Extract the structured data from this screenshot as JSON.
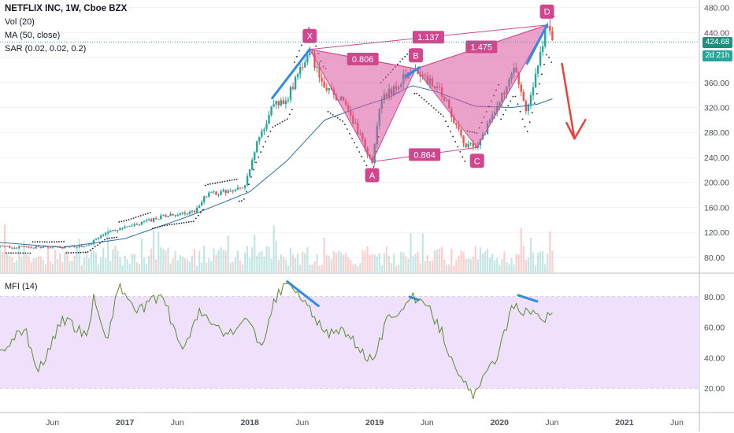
{
  "legend": {
    "title": "NETFLIX INC, 1W, Cboe BZX",
    "vol": "Vol (20)",
    "ma": "MA (50, close)",
    "sar": "SAR (0.02, 0.02, 0.2)",
    "mfi": "MFI (14)"
  },
  "price_tags": {
    "last": "424.68",
    "countdown": "2d 21h"
  },
  "colors": {
    "up": "#26a69a",
    "down": "#ef5350",
    "ma": "#2c6ea8",
    "sar": "#1a1a2e",
    "pattern": "#d1478f",
    "pattern_fill": "#d9559e",
    "blue_line": "#2f8be6",
    "arrow": "#e8413a",
    "mfi_line": "#5b8a2e",
    "mfi_band": "#efe1fb",
    "price_line": "#26a69a"
  },
  "chart_data": [
    {
      "type": "candlestick",
      "title": "NETFLIX INC, 1W, Cboe BZX",
      "x_axis_labels": [
        "Jun",
        "2017",
        "Jun",
        "2018",
        "Jun",
        "2019",
        "Jun",
        "2020",
        "Jun",
        "2021",
        "Jun"
      ],
      "y_ticks": [
        80,
        120,
        160,
        200,
        240,
        280,
        320,
        360,
        400,
        440,
        480
      ],
      "ylim": [
        56,
        492
      ],
      "last_price": 424.68,
      "anchors": [
        {
          "date": 2016.0,
          "price": 97
        },
        {
          "date": 2016.4,
          "price": 96
        },
        {
          "date": 2016.7,
          "price": 98
        },
        {
          "date": 2016.85,
          "price": 122
        },
        {
          "date": 2017.0,
          "price": 127
        },
        {
          "date": 2017.3,
          "price": 145
        },
        {
          "date": 2017.55,
          "price": 153
        },
        {
          "date": 2017.65,
          "price": 180
        },
        {
          "date": 2017.95,
          "price": 190
        },
        {
          "date": 2018.05,
          "price": 258
        },
        {
          "date": 2018.18,
          "price": 320
        },
        {
          "date": 2018.3,
          "price": 335
        },
        {
          "date": 2018.48,
          "price": 413
        },
        {
          "date": 2018.58,
          "price": 355
        },
        {
          "date": 2018.75,
          "price": 330
        },
        {
          "date": 2018.98,
          "price": 233
        },
        {
          "date": 2019.05,
          "price": 330
        },
        {
          "date": 2019.25,
          "price": 370
        },
        {
          "date": 2019.33,
          "price": 382
        },
        {
          "date": 2019.55,
          "price": 340
        },
        {
          "date": 2019.72,
          "price": 260
        },
        {
          "date": 2019.82,
          "price": 256
        },
        {
          "date": 2020.0,
          "price": 330
        },
        {
          "date": 2020.12,
          "price": 380
        },
        {
          "date": 2020.22,
          "price": 310
        },
        {
          "date": 2020.3,
          "price": 380
        },
        {
          "date": 2020.38,
          "price": 452
        },
        {
          "date": 2020.44,
          "price": 425
        }
      ],
      "ma50": [
        {
          "date": 2016.0,
          "price": 104
        },
        {
          "date": 2016.5,
          "price": 96
        },
        {
          "date": 2017.0,
          "price": 110
        },
        {
          "date": 2017.5,
          "price": 145
        },
        {
          "date": 2018.0,
          "price": 185
        },
        {
          "date": 2018.3,
          "price": 235
        },
        {
          "date": 2018.6,
          "price": 300
        },
        {
          "date": 2018.9,
          "price": 322
        },
        {
          "date": 2019.1,
          "price": 335
        },
        {
          "date": 2019.3,
          "price": 355
        },
        {
          "date": 2019.5,
          "price": 345
        },
        {
          "date": 2019.8,
          "price": 322
        },
        {
          "date": 2020.1,
          "price": 320
        },
        {
          "date": 2020.3,
          "price": 325
        },
        {
          "date": 2020.44,
          "price": 335
        }
      ],
      "volume_scale": "relative",
      "harmonic_pattern": {
        "points": [
          {
            "label": "X",
            "date": 2018.48,
            "price": 413
          },
          {
            "label": "A",
            "date": 2018.98,
            "price": 233
          },
          {
            "label": "B",
            "date": 2019.33,
            "price": 382
          },
          {
            "label": "C",
            "date": 2019.82,
            "price": 256
          },
          {
            "label": "D",
            "date": 2020.38,
            "price": 452
          }
        ],
        "ratios": [
          {
            "text": "0.806",
            "from": "X",
            "to": "B"
          },
          {
            "text": "1.137",
            "from": "X",
            "to": "D"
          },
          {
            "text": "1.475",
            "from": "B",
            "to": "D"
          },
          {
            "text": "0.864",
            "from": "A",
            "to": "C"
          }
        ]
      },
      "annotations": {
        "blue_lines": [
          {
            "from": {
              "date": 2018.18,
              "price": 335
            },
            "to": {
              "date": 2018.48,
              "price": 413
            }
          },
          {
            "from": {
              "date": 2019.25,
              "price": 370
            },
            "to": {
              "date": 2019.36,
              "price": 384
            }
          },
          {
            "from": {
              "date": 2020.22,
              "price": 390
            },
            "to": {
              "date": 2020.38,
              "price": 452
            }
          }
        ],
        "red_arrow": {
          "from": {
            "date": 2020.5,
            "price": 390
          },
          "to": {
            "date": 2020.6,
            "price": 270
          }
        }
      }
    },
    {
      "type": "line",
      "title": "MFI (14)",
      "y_ticks": [
        20,
        40,
        60,
        80
      ],
      "ylim": [
        5,
        95
      ],
      "band": [
        20,
        80
      ],
      "anchors": [
        {
          "date": 2016.0,
          "value": 43
        },
        {
          "date": 2016.2,
          "value": 60
        },
        {
          "date": 2016.3,
          "value": 30
        },
        {
          "date": 2016.5,
          "value": 65
        },
        {
          "date": 2016.7,
          "value": 55
        },
        {
          "date": 2016.75,
          "value": 80
        },
        {
          "date": 2016.85,
          "value": 50
        },
        {
          "date": 2016.95,
          "value": 88
        },
        {
          "date": 2017.1,
          "value": 70
        },
        {
          "date": 2017.3,
          "value": 82
        },
        {
          "date": 2017.45,
          "value": 45
        },
        {
          "date": 2017.6,
          "value": 70
        },
        {
          "date": 2017.8,
          "value": 55
        },
        {
          "date": 2018.0,
          "value": 65
        },
        {
          "date": 2018.1,
          "value": 45
        },
        {
          "date": 2018.2,
          "value": 78
        },
        {
          "date": 2018.3,
          "value": 90
        },
        {
          "date": 2018.45,
          "value": 75
        },
        {
          "date": 2018.5,
          "value": 70
        },
        {
          "date": 2018.6,
          "value": 55
        },
        {
          "date": 2018.75,
          "value": 58
        },
        {
          "date": 2018.98,
          "value": 37
        },
        {
          "date": 2019.1,
          "value": 65
        },
        {
          "date": 2019.2,
          "value": 72
        },
        {
          "date": 2019.3,
          "value": 80
        },
        {
          "date": 2019.45,
          "value": 70
        },
        {
          "date": 2019.55,
          "value": 55
        },
        {
          "date": 2019.65,
          "value": 30
        },
        {
          "date": 2019.8,
          "value": 15
        },
        {
          "date": 2019.9,
          "value": 30
        },
        {
          "date": 2020.0,
          "value": 45
        },
        {
          "date": 2020.1,
          "value": 73
        },
        {
          "date": 2020.25,
          "value": 70
        },
        {
          "date": 2020.3,
          "value": 72
        },
        {
          "date": 2020.35,
          "value": 65
        },
        {
          "date": 2020.44,
          "value": 70
        }
      ],
      "blue_lines": [
        {
          "from": {
            "date": 2018.3,
            "value": 90
          },
          "to": {
            "date": 2018.55,
            "value": 74
          }
        },
        {
          "from": {
            "date": 2019.28,
            "value": 80
          },
          "to": {
            "date": 2019.35,
            "value": 78
          }
        },
        {
          "from": {
            "date": 2020.15,
            "value": 81
          },
          "to": {
            "date": 2020.3,
            "value": 77
          }
        }
      ]
    }
  ]
}
